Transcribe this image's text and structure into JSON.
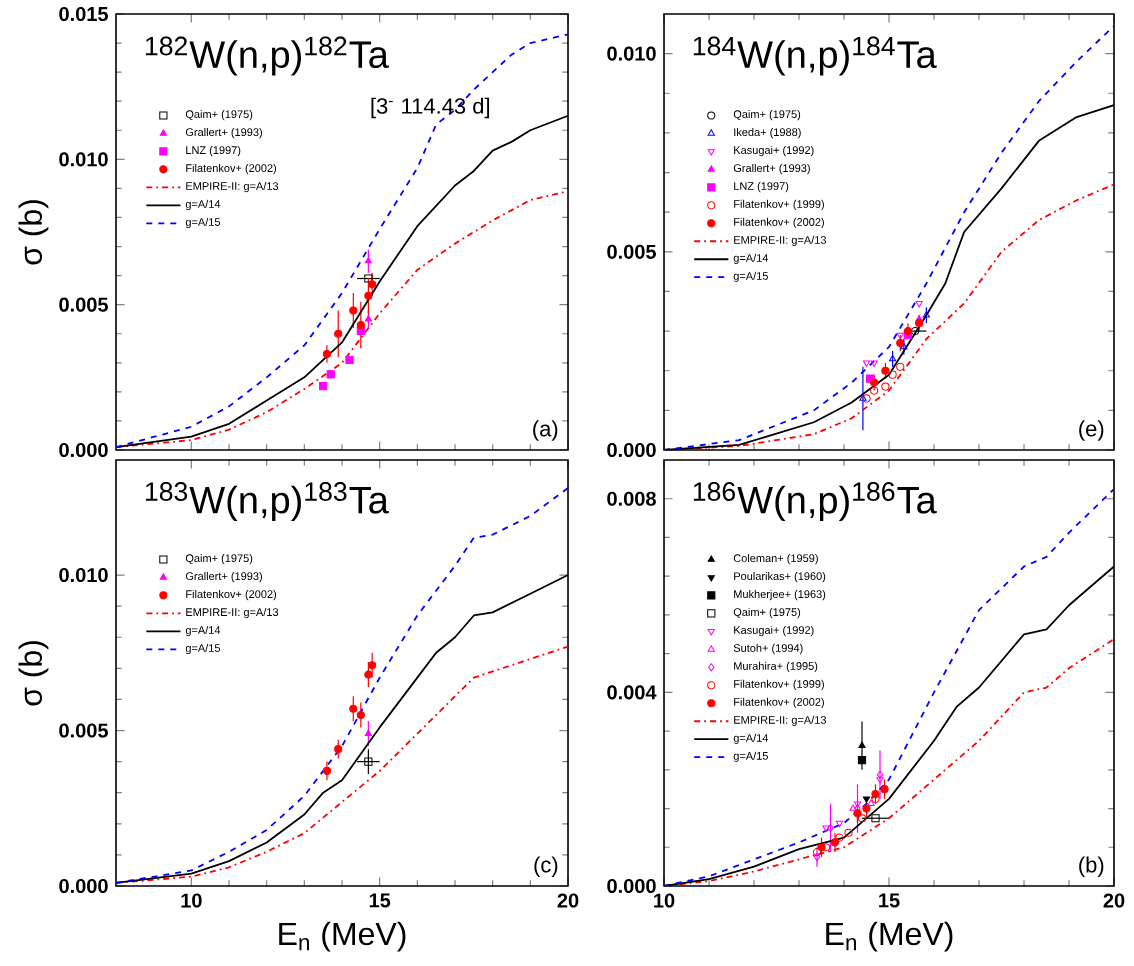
{
  "chart_data": [
    {
      "type": "scatter",
      "title": "$^{182}$W(n,p)$^{182}$Ta",
      "ylabel": "σ (b)",
      "annotations": [
        "[3$^{-}$  114.43 d]",
        "(a)"
      ],
      "xlim": [
        8,
        20
      ],
      "xticks": [
        10,
        15,
        20
      ],
      "ylim": [
        0,
        0.015
      ],
      "yticks": [
        {
          "value": 0,
          "label": "0.000"
        },
        {
          "value": 0.005,
          "label": "0.005"
        },
        {
          "value": 0.01,
          "label": "0.010"
        },
        {
          "value": 0.015,
          "label": "0.015"
        }
      ],
      "tick_labels": "y",
      "legend": "top left",
      "series": [
        {
          "name": "Qaim+ (1975)",
          "color": "#000000",
          "marker": "square-open",
          "x": [
            14.7
          ],
          "values": [
            0.0059
          ],
          "xerrors": [
            0.3
          ]
        },
        {
          "name": "Grallert+ (1993)",
          "color": "#ff00ff",
          "marker": "triangle",
          "x": [
            14.7,
            14.7
          ],
          "values": [
            0.0065,
            0.0045
          ],
          "errors": [
            0.0004,
            0.0003
          ]
        },
        {
          "name": "LNZ (1997)",
          "color": "#ff00ff",
          "marker": "square",
          "x": [
            13.5,
            13.7,
            14.2,
            14.5
          ],
          "values": [
            0.0022,
            0.0026,
            0.0031,
            0.0041
          ],
          "xerrors": [
            0.1,
            0.1,
            0.1,
            0.1
          ]
        },
        {
          "name": "Filatenkov+ (2002)",
          "color": "#ff0000",
          "marker": "circle",
          "x": [
            13.6,
            13.9,
            14.3,
            14.5,
            14.7,
            14.8
          ],
          "values": [
            0.0033,
            0.004,
            0.0048,
            0.0043,
            0.0053,
            0.0057
          ],
          "errors": [
            0.0003,
            0.0008,
            0.0006,
            0.0008,
            0.0006,
            0.0004
          ]
        },
        {
          "name": "EMPIRE-II: g=A/13",
          "type": "line",
          "color": "#ff0000",
          "line_style": "dashdot",
          "x": [
            8,
            10,
            11,
            12,
            13,
            14,
            15,
            16,
            17,
            18,
            19,
            20
          ],
          "values": [
            0.0001,
            0.00034,
            0.0007,
            0.0013,
            0.0021,
            0.003,
            0.0047,
            0.0062,
            0.0071,
            0.0079,
            0.0086,
            0.0089
          ]
        },
        {
          "name": "g=A/14",
          "type": "line",
          "color": "#000000",
          "line_style": "solid",
          "x": [
            8,
            10,
            11,
            12,
            13,
            14,
            15,
            16,
            17,
            17.5,
            18,
            18.5,
            19,
            20
          ],
          "values": [
            0.0001,
            0.00046,
            0.0009,
            0.0017,
            0.0025,
            0.0037,
            0.0058,
            0.0077,
            0.0091,
            0.0096,
            0.0103,
            0.0106,
            0.011,
            0.0115
          ]
        },
        {
          "name": "g=A/15",
          "type": "line",
          "color": "#0000ff",
          "line_style": "dashed",
          "x": [
            8,
            10,
            11,
            12,
            13,
            14,
            15,
            16,
            16.5,
            17,
            17.5,
            18,
            18.5,
            19,
            20
          ],
          "values": [
            0.0001,
            0.0008,
            0.0015,
            0.0025,
            0.0036,
            0.0054,
            0.0076,
            0.0097,
            0.0112,
            0.0117,
            0.0124,
            0.013,
            0.0136,
            0.014,
            0.0143
          ]
        }
      ]
    },
    {
      "type": "scatter",
      "title": "$^{184}$W(n,p)$^{184}$Ta",
      "annotations": [
        "(e)"
      ],
      "xlim": [
        10,
        20
      ],
      "xticks": [
        10,
        15,
        20
      ],
      "ylim": [
        0,
        0.011
      ],
      "yticks": [
        {
          "value": 0,
          "label": "0.000"
        },
        {
          "value": 0.005,
          "label": "0.005"
        },
        {
          "value": 0.01,
          "label": "0.010"
        }
      ],
      "tick_labels": "y",
      "legend": "top left",
      "series": [
        {
          "name": "Qaim+ (1975)",
          "color": "#000000",
          "marker": "circle-open",
          "x": [
            15.58
          ],
          "values": [
            0.003
          ],
          "xerrors": [
            0.25
          ]
        },
        {
          "name": "Ikeda+ (1988)",
          "color": "#0000ff",
          "marker": "triangle-open",
          "x": [
            14.42,
            15.08,
            15.33,
            15.83
          ],
          "values": [
            0.0013,
            0.0023,
            0.0026,
            0.0034
          ],
          "errors": [
            0.0008,
            0.0002,
            0.0002,
            0.0002
          ]
        },
        {
          "name": "Kasugai+ (1992)",
          "color": "#ff00ff",
          "marker": "triangle-down-open",
          "x": [
            14.5,
            14.67,
            15.25,
            15.67
          ],
          "values": [
            0.0022,
            0.0022,
            0.0029,
            0.0037
          ]
        },
        {
          "name": "Grallert+ (1993)",
          "color": "#ff00ff",
          "marker": "triangle",
          "x": [
            15.67
          ],
          "values": [
            0.0033
          ]
        },
        {
          "name": "LNZ (1997)",
          "color": "#ff00ff",
          "marker": "square",
          "x": [
            14.58,
            15.42
          ],
          "values": [
            0.0018,
            0.0029
          ]
        },
        {
          "name": "Filatenkov+ (1999)",
          "color": "#ff0000",
          "marker": "circle-open",
          "x": [
            14.5,
            14.67,
            14.92,
            15.08,
            15.25
          ],
          "values": [
            0.0013,
            0.0015,
            0.0016,
            0.0019,
            0.0021
          ]
        },
        {
          "name": "Filatenkov+ (2002)",
          "color": "#ff0000",
          "marker": "circle",
          "x": [
            14.67,
            14.92,
            15.25,
            15.42,
            15.67
          ],
          "values": [
            0.0017,
            0.002,
            0.0027,
            0.003,
            0.0032
          ],
          "errors": [
            0.0002,
            0.0002,
            0.0002,
            0.0002,
            0.0002
          ]
        },
        {
          "name": "EMPIRE-II: g=A/13",
          "type": "line",
          "color": "#ff0000",
          "line_style": "dashdot",
          "x": [
            10,
            11.67,
            13.33,
            14.17,
            15,
            15.83,
            16.67,
            17.5,
            18.33,
            19.17,
            20
          ],
          "values": [
            0.0,
            0.0001,
            0.0004,
            0.0008,
            0.0015,
            0.0028,
            0.0037,
            0.005,
            0.0058,
            0.0063,
            0.0067
          ]
        },
        {
          "name": "g=A/14",
          "type": "line",
          "color": "#000000",
          "line_style": "solid",
          "x": [
            10,
            11.67,
            13.33,
            14.17,
            15,
            15.83,
            16.25,
            16.67,
            17.5,
            18.33,
            19.17,
            20
          ],
          "values": [
            0.0,
            0.00013,
            0.0007,
            0.0012,
            0.0019,
            0.0034,
            0.0042,
            0.0055,
            0.0066,
            0.0078,
            0.0084,
            0.0087
          ]
        },
        {
          "name": "g=A/15",
          "type": "line",
          "color": "#0000ff",
          "line_style": "dashed",
          "x": [
            10,
            11.67,
            13.33,
            14.17,
            15,
            15.83,
            16.67,
            17.5,
            18.33,
            19.17,
            20
          ],
          "values": [
            0.0,
            0.00025,
            0.001,
            0.0017,
            0.0026,
            0.0042,
            0.006,
            0.0075,
            0.0088,
            0.0098,
            0.0107
          ]
        }
      ]
    },
    {
      "type": "scatter",
      "title": "$^{183}$W(n,p)$^{183}$Ta",
      "xlabel": "E$_{n}$ (MeV)",
      "ylabel": "σ (b)",
      "annotations": [
        "(c)"
      ],
      "xlim": [
        8,
        20
      ],
      "xticks": [
        10,
        15,
        20
      ],
      "ylim": [
        0,
        0.0137
      ],
      "yticks": [
        {
          "value": 0,
          "label": "0.000"
        },
        {
          "value": 0.005,
          "label": "0.005"
        },
        {
          "value": 0.01,
          "label": "0.010"
        }
      ],
      "legend": "top left",
      "series": [
        {
          "name": "Qaim+ (1975)",
          "color": "#000000",
          "marker": "square-open",
          "x": [
            14.7
          ],
          "values": [
            0.004
          ],
          "xerrors": [
            0.3
          ],
          "errors": [
            0.0004
          ]
        },
        {
          "name": "Grallert+ (1993)",
          "color": "#ff00ff",
          "marker": "triangle",
          "x": [
            14.7
          ],
          "values": [
            0.0049
          ],
          "errors": [
            0.0004
          ]
        },
        {
          "name": "Filatenkov+ (2002)",
          "color": "#ff0000",
          "marker": "circle",
          "x": [
            13.6,
            13.9,
            14.3,
            14.5,
            14.7,
            14.8
          ],
          "values": [
            0.0037,
            0.0044,
            0.0057,
            0.0055,
            0.0068,
            0.0071
          ],
          "errors": [
            0.0003,
            0.0003,
            0.0004,
            0.0004,
            0.0004,
            0.0004
          ]
        },
        {
          "name": "EMPIRE-II: g=A/13",
          "type": "line",
          "color": "#ff0000",
          "line_style": "dashdot",
          "x": [
            8,
            10,
            11,
            12,
            13,
            14,
            15,
            16,
            17,
            17.5,
            18,
            19,
            20
          ],
          "values": [
            0.0001,
            0.0003,
            0.0006,
            0.0011,
            0.0017,
            0.0027,
            0.0037,
            0.0049,
            0.0061,
            0.0067,
            0.0069,
            0.0073,
            0.0077
          ]
        },
        {
          "name": "g=A/14",
          "type": "line",
          "color": "#000000",
          "line_style": "solid",
          "x": [
            8,
            10,
            11,
            12,
            13,
            13.5,
            14,
            15,
            16,
            16.5,
            17,
            17.5,
            18,
            19,
            20
          ],
          "values": [
            0.0001,
            0.0004,
            0.0008,
            0.0014,
            0.0023,
            0.003,
            0.0034,
            0.0051,
            0.0067,
            0.0075,
            0.008,
            0.0087,
            0.0088,
            0.0094,
            0.01
          ]
        },
        {
          "name": "g=A/15",
          "type": "line",
          "color": "#0000ff",
          "line_style": "dashed",
          "x": [
            8,
            10,
            11,
            12,
            13,
            14,
            15,
            16,
            17,
            17.5,
            18,
            19,
            20
          ],
          "values": [
            0.0001,
            0.0005,
            0.0011,
            0.0018,
            0.0029,
            0.0045,
            0.0067,
            0.0087,
            0.0103,
            0.0112,
            0.0113,
            0.0119,
            0.0128
          ]
        }
      ]
    },
    {
      "type": "scatter",
      "title": "$^{186}$W(n,p)$^{186}$Ta",
      "xlabel": "E$_{n}$ (MeV)",
      "annotations": [
        "(b)"
      ],
      "xlim": [
        10,
        20
      ],
      "xticks": [
        10,
        15,
        20
      ],
      "ylim": [
        0,
        0.0088
      ],
      "yticks": [
        {
          "value": 0,
          "label": "0.000"
        },
        {
          "value": 0.004,
          "label": "0.004"
        },
        {
          "value": 0.008,
          "label": "0.008"
        }
      ],
      "legend": "top left",
      "series": [
        {
          "name": "Coleman+ (1959)",
          "color": "#000000",
          "marker": "triangle",
          "x": [
            14.4
          ],
          "values": [
            0.0029
          ],
          "errors": [
            0.0005
          ]
        },
        {
          "name": "Poularikas+ (1960)",
          "color": "#000000",
          "marker": "triangle-down",
          "x": [
            14.5
          ],
          "values": [
            0.0018
          ]
        },
        {
          "name": "Mukherjee+ (1963)",
          "color": "#000000",
          "marker": "square",
          "x": [
            14.4
          ],
          "values": [
            0.0026
          ]
        },
        {
          "name": "Qaim+ (1975)",
          "color": "#000000",
          "marker": "square-open",
          "x": [
            14.7
          ],
          "values": [
            0.0014
          ],
          "xerrors": [
            0.3
          ]
        },
        {
          "name": "Kasugai+ (1992)",
          "color": "#ff00ff",
          "marker": "triangle-down-open",
          "x": [
            13.6,
            13.9,
            14.3,
            14.8
          ],
          "values": [
            0.0012,
            0.0013,
            0.0017,
            0.0022
          ]
        },
        {
          "name": "Sutoh+ (1994)",
          "color": "#ff00ff",
          "marker": "triangle-open",
          "x": [
            14.2,
            14.6
          ],
          "values": [
            0.0016,
            0.0017
          ]
        },
        {
          "name": "Murahira+ (1995)",
          "color": "#ff00ff",
          "marker": "diamond-open",
          "x": [
            13.4,
            13.7,
            14.3,
            14.8
          ],
          "values": [
            0.0006,
            0.0012,
            0.0016,
            0.0023
          ],
          "errors": [
            0.0002,
            0.0005,
            0.0005,
            0.0005
          ]
        },
        {
          "name": "Filatenkov+ (1999)",
          "color": "#ff0000",
          "marker": "circle-open",
          "x": [
            13.4,
            13.6,
            13.9,
            14.1,
            14.4,
            14.7
          ],
          "values": [
            0.0007,
            0.0008,
            0.001,
            0.0011,
            0.0014,
            0.0018
          ]
        },
        {
          "name": "Filatenkov+ (2002)",
          "color": "#ff0000",
          "marker": "circle",
          "x": [
            13.5,
            13.8,
            14.3,
            14.5,
            14.7,
            14.9
          ],
          "values": [
            0.0008,
            0.0009,
            0.0015,
            0.0016,
            0.0019,
            0.002
          ],
          "errors": [
            0.0002,
            0.0002,
            0.0002,
            0.0002,
            0.0002,
            0.0002
          ]
        },
        {
          "name": "EMPIRE-II: g=A/13",
          "type": "line",
          "color": "#ff0000",
          "line_style": "dashdot",
          "x": [
            10,
            11,
            12,
            13,
            14,
            15,
            16,
            17,
            18,
            18.5,
            19,
            20
          ],
          "values": [
            0.0,
            0.0001,
            0.0003,
            0.00055,
            0.0008,
            0.0014,
            0.0022,
            0.003,
            0.004,
            0.0041,
            0.0045,
            0.0051
          ]
        },
        {
          "name": "g=A/14",
          "type": "line",
          "color": "#000000",
          "line_style": "solid",
          "x": [
            10,
            11,
            12,
            13,
            14,
            15,
            16,
            16.5,
            17,
            18,
            18.5,
            19,
            20
          ],
          "values": [
            0.0,
            0.00014,
            0.0004,
            0.00076,
            0.001,
            0.0018,
            0.003,
            0.0037,
            0.0041,
            0.0052,
            0.0053,
            0.0058,
            0.0066
          ]
        },
        {
          "name": "g=A/15",
          "type": "line",
          "color": "#0000ff",
          "line_style": "dashed",
          "x": [
            10,
            11,
            12,
            13,
            14,
            14.5,
            15,
            16,
            17,
            18,
            18.5,
            19,
            20
          ],
          "values": [
            0.0,
            0.0002,
            0.00055,
            0.0009,
            0.0013,
            0.0017,
            0.0022,
            0.004,
            0.0057,
            0.0066,
            0.0068,
            0.0073,
            0.0082
          ]
        }
      ]
    }
  ]
}
